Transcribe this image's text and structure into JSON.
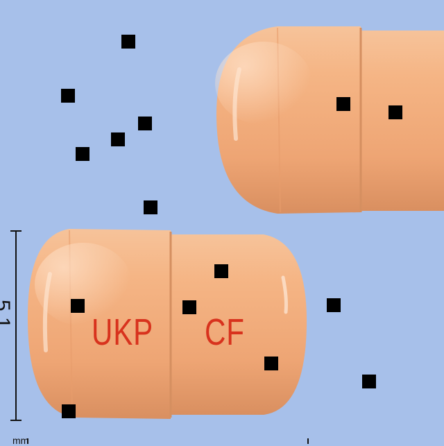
{
  "photo": {
    "background_color": "#a7c0ea",
    "capsule_color": "#f3ad7c",
    "imprint_color": "#d8321d"
  },
  "capsule_front": {
    "imprint_cap": "UKP",
    "imprint_body": "CF"
  },
  "scale_bar": {
    "value": "5.1",
    "unit": "mm"
  },
  "markers_count": 16
}
